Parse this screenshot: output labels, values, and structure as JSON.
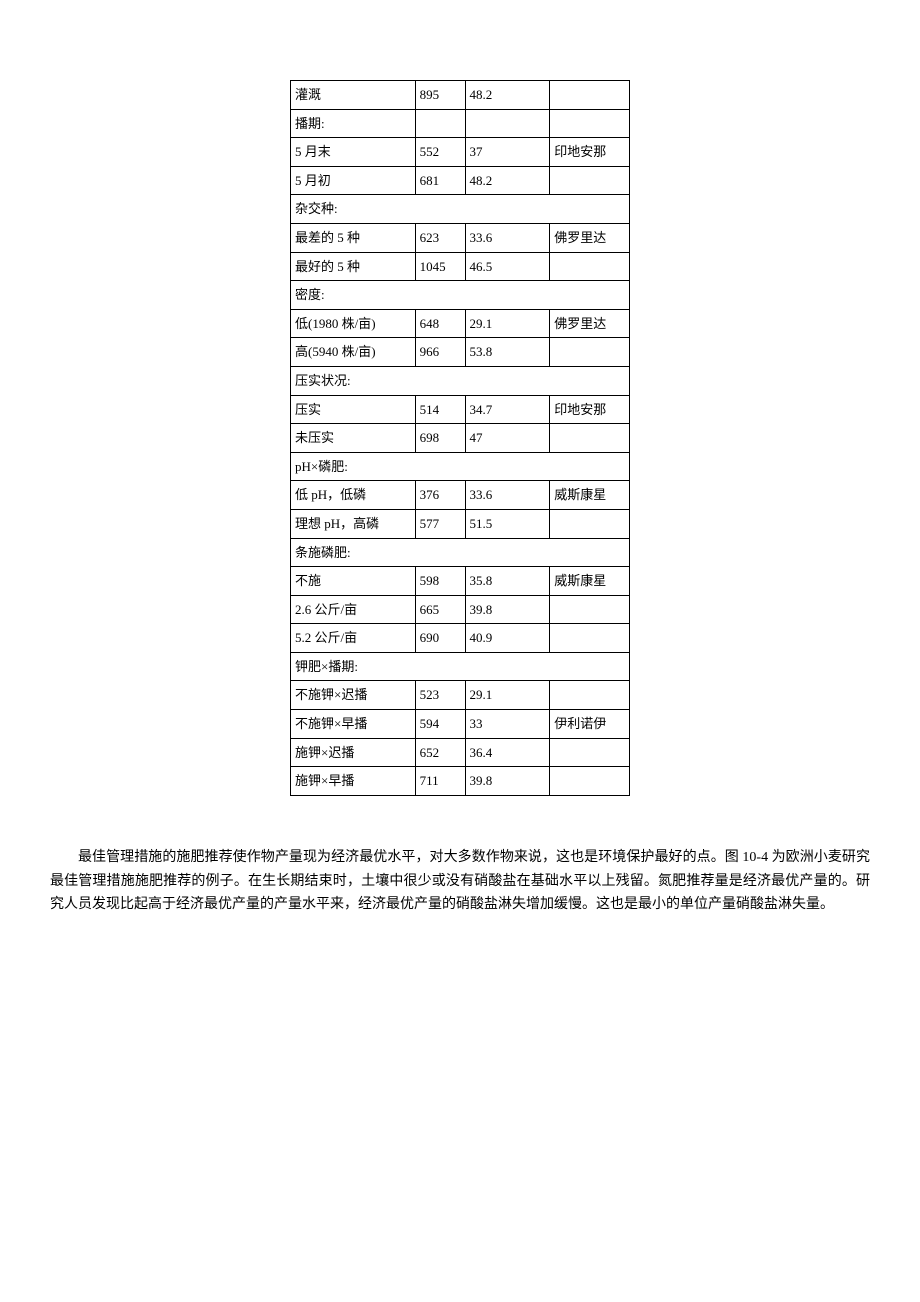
{
  "table": {
    "border_color": "#000000",
    "background_color": "#ffffff",
    "font_size": 13,
    "rows": [
      {
        "type": "data",
        "cells": [
          "灌溉",
          "895",
          "48.2",
          ""
        ]
      },
      {
        "type": "data",
        "cells": [
          "播期:",
          "",
          "",
          ""
        ]
      },
      {
        "type": "data",
        "cells": [
          "5 月末",
          "552",
          "37",
          "印地安那"
        ]
      },
      {
        "type": "data",
        "cells": [
          "5 月初",
          "681",
          "48.2",
          ""
        ]
      },
      {
        "type": "header",
        "cells": [
          "杂交种:"
        ]
      },
      {
        "type": "data",
        "cells": [
          "最差的 5 种",
          "623",
          "33.6",
          "佛罗里达"
        ]
      },
      {
        "type": "data",
        "cells": [
          "最好的 5 种",
          "1045",
          "46.5",
          ""
        ]
      },
      {
        "type": "header",
        "cells": [
          "密度:"
        ]
      },
      {
        "type": "data",
        "cells": [
          "低(1980 株/亩)",
          "648",
          "29.1",
          "佛罗里达"
        ]
      },
      {
        "type": "data",
        "cells": [
          "高(5940 株/亩)",
          "966",
          "53.8",
          ""
        ]
      },
      {
        "type": "header",
        "cells": [
          "压实状况:"
        ]
      },
      {
        "type": "data",
        "cells": [
          "压实",
          "514",
          "34.7",
          "印地安那"
        ]
      },
      {
        "type": "data",
        "cells": [
          "未压实",
          "698",
          "47",
          ""
        ]
      },
      {
        "type": "header",
        "cells": [
          "pH×磷肥:"
        ]
      },
      {
        "type": "data",
        "cells": [
          "低 pH，低磷",
          "376",
          "33.6",
          "威斯康星"
        ]
      },
      {
        "type": "data",
        "cells": [
          "理想 pH，高磷",
          "577",
          "51.5",
          ""
        ]
      },
      {
        "type": "header",
        "cells": [
          "条施磷肥:"
        ]
      },
      {
        "type": "data",
        "cells": [
          "不施",
          "598",
          "35.8",
          "威斯康星"
        ]
      },
      {
        "type": "data",
        "cells": [
          "2.6 公斤/亩",
          "665",
          "39.8",
          ""
        ]
      },
      {
        "type": "data",
        "cells": [
          "5.2 公斤/亩",
          "690",
          "40.9",
          ""
        ]
      },
      {
        "type": "header",
        "cells": [
          "钾肥×播期:"
        ]
      },
      {
        "type": "data",
        "cells": [
          "不施钾×迟播",
          "523",
          "29.1",
          ""
        ]
      },
      {
        "type": "data",
        "cells": [
          "不施钾×早播",
          "594",
          "33",
          "伊利诺伊"
        ]
      },
      {
        "type": "data",
        "cells": [
          "施钾×迟播",
          "652",
          "36.4",
          ""
        ]
      },
      {
        "type": "data",
        "cells": [
          "施钾×早播",
          "711",
          "39.8",
          ""
        ]
      }
    ]
  },
  "paragraph": {
    "text": "最佳管理措施的施肥推荐使作物产量现为经济最优水平，对大多数作物来说，这也是环境保护最好的点。图 10-4 为欧洲小麦研究最佳管理措施施肥推荐的例子。在生长期结束时，土壤中很少或没有硝酸盐在基础水平以上残留。氮肥推荐量是经济最优产量的。研究人员发现比起高于经济最优产量的产量水平来，经济最优产量的硝酸盐淋失增加缓慢。这也是最小的单位产量硝酸盐淋失量。",
    "font_size": 14,
    "line_height": 1.7
  }
}
